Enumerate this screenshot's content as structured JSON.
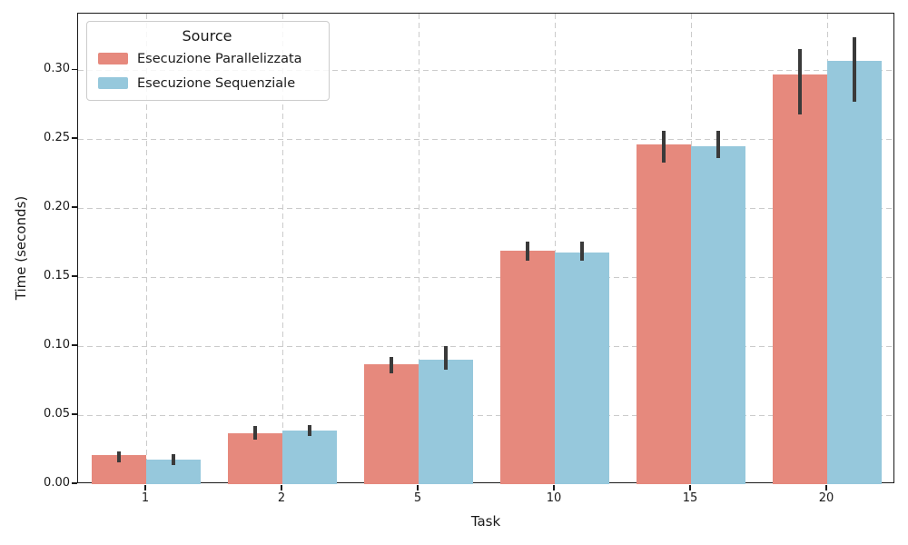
{
  "chart_data": {
    "type": "bar",
    "title": "",
    "xlabel": "Task",
    "ylabel": "Time (seconds)",
    "categories": [
      "1",
      "2",
      "5",
      "10",
      "15",
      "20"
    ],
    "series": [
      {
        "name": "Esecuzione Parallelizzata",
        "color": "#E6897D",
        "values": [
          0.021,
          0.037,
          0.087,
          0.169,
          0.246,
          0.297
        ],
        "err_low": [
          0.016,
          0.032,
          0.08,
          0.162,
          0.233,
          0.268
        ],
        "err_high": [
          0.024,
          0.042,
          0.092,
          0.176,
          0.256,
          0.315
        ]
      },
      {
        "name": "Esecuzione Sequenziale",
        "color": "#96C8DC",
        "values": [
          0.018,
          0.039,
          0.09,
          0.168,
          0.245,
          0.307
        ],
        "err_low": [
          0.014,
          0.035,
          0.083,
          0.162,
          0.236,
          0.277
        ],
        "err_high": [
          0.022,
          0.043,
          0.1,
          0.176,
          0.256,
          0.324
        ]
      }
    ],
    "yticks": [
      0.0,
      0.05,
      0.1,
      0.15,
      0.2,
      0.25,
      0.3
    ],
    "ytick_labels": [
      "0.00",
      "0.05",
      "0.10",
      "0.15",
      "0.20",
      "0.25",
      "0.30"
    ],
    "ylim": [
      0,
      0.341
    ],
    "legend": {
      "title": "Source",
      "position": "upper-left"
    },
    "grid": {
      "show": true,
      "style": "dashed",
      "color": "#cbcbcb"
    },
    "error_bar_color": "#3A3A3A",
    "spine_color": "#1a1a1a"
  }
}
